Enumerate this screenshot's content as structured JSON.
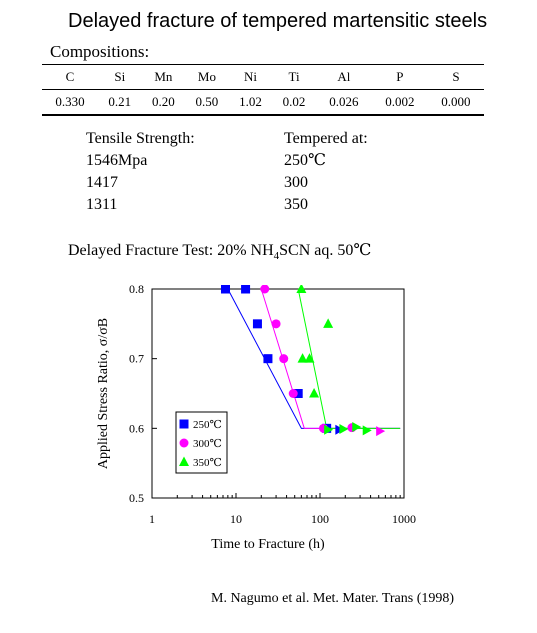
{
  "title": "Delayed fracture of tempered martensitic steels",
  "compositions": {
    "label": "Compositions:",
    "elements": [
      "C",
      "Si",
      "Mn",
      "Mo",
      "Ni",
      "Ti",
      "Al",
      "P",
      "S"
    ],
    "values": [
      "0.330",
      "0.21",
      "0.20",
      "0.50",
      "1.02",
      "0.02",
      "0.026",
      "0.002",
      "0.000"
    ]
  },
  "tensile": {
    "header_left": "Tensile Strength:",
    "header_right": "Tempered at:",
    "rows": [
      {
        "strength": "1546Mpa",
        "temp": "250℃"
      },
      {
        "strength": "1417",
        "temp": "300"
      },
      {
        "strength": "1311",
        "temp": "350"
      }
    ]
  },
  "test": {
    "prefix": "Delayed Fracture Test: 20% NH",
    "sub": "4",
    "suffix": "SCN aq. 50℃"
  },
  "chart_data": {
    "type": "scatter",
    "xlabel": "Time to Fracture (h)",
    "ylabel": "Applied Stress Ratio, σ/σB",
    "xscale": "log",
    "xlim": [
      1,
      1000
    ],
    "ylim": [
      0.5,
      0.8
    ],
    "xticks": [
      "1",
      "10",
      "100",
      "1000"
    ],
    "yticks": [
      "0.5",
      "0.6",
      "0.7",
      "0.8"
    ],
    "legend_position": "lower-left",
    "series": [
      {
        "name": "250℃",
        "marker": "square",
        "color": "#0000ff",
        "points": [
          [
            7.5,
            0.8
          ],
          [
            13,
            0.8
          ],
          [
            18,
            0.75
          ],
          [
            24,
            0.7
          ],
          [
            55,
            0.65
          ],
          [
            120,
            0.6
          ]
        ],
        "runouts": [
          [
            170,
            0.598
          ]
        ],
        "fit": [
          [
            8,
            0.8
          ],
          [
            60,
            0.6
          ],
          [
            900,
            0.6
          ]
        ]
      },
      {
        "name": "300℃",
        "marker": "circle",
        "color": "#ff00ff",
        "points": [
          [
            22,
            0.8
          ],
          [
            30,
            0.75
          ],
          [
            37,
            0.7
          ],
          [
            48,
            0.65
          ],
          [
            110,
            0.6
          ],
          [
            240,
            0.601
          ]
        ],
        "runouts": [
          [
            520,
            0.596
          ]
        ],
        "fit": [
          [
            20,
            0.8
          ],
          [
            65,
            0.6
          ],
          [
            900,
            0.6
          ]
        ]
      },
      {
        "name": "350℃",
        "marker": "triangle",
        "color": "#00ff00",
        "points": [
          [
            60,
            0.8
          ],
          [
            62,
            0.7
          ],
          [
            75,
            0.7
          ],
          [
            85,
            0.65
          ],
          [
            125,
            0.75
          ]
        ],
        "runouts": [
          [
            125,
            0.598
          ],
          [
            190,
            0.599
          ],
          [
            270,
            0.602
          ],
          [
            360,
            0.597
          ]
        ],
        "fit": [
          [
            55,
            0.8
          ],
          [
            120,
            0.6
          ],
          [
            900,
            0.6
          ]
        ]
      }
    ]
  },
  "citation": "M. Nagumo et al. Met. Mater. Trans (1998)"
}
